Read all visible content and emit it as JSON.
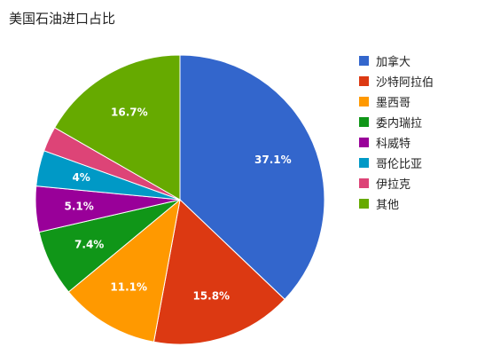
{
  "chart_data": {
    "type": "pie",
    "title": "美国石油进口占比",
    "slices": [
      {
        "label": "加拿大",
        "value": 37.1,
        "display": "37.1%",
        "color": "#3366cc"
      },
      {
        "label": "沙特阿拉伯",
        "value": 15.8,
        "display": "15.8%",
        "color": "#dc3912"
      },
      {
        "label": "墨西哥",
        "value": 11.1,
        "display": "11.1%",
        "color": "#ff9900"
      },
      {
        "label": "委内瑞拉",
        "value": 7.4,
        "display": "7.4%",
        "color": "#109618"
      },
      {
        "label": "科威特",
        "value": 5.1,
        "display": "5.1%",
        "color": "#990099"
      },
      {
        "label": "哥伦比亚",
        "value": 4,
        "display": "4%",
        "color": "#0099c6"
      },
      {
        "label": "伊拉克",
        "value": 2.8,
        "display": "",
        "color": "#dd4477"
      },
      {
        "label": "其他",
        "value": 16.7,
        "display": "16.7%",
        "color": "#66aa00"
      }
    ],
    "legend_position": "right"
  }
}
